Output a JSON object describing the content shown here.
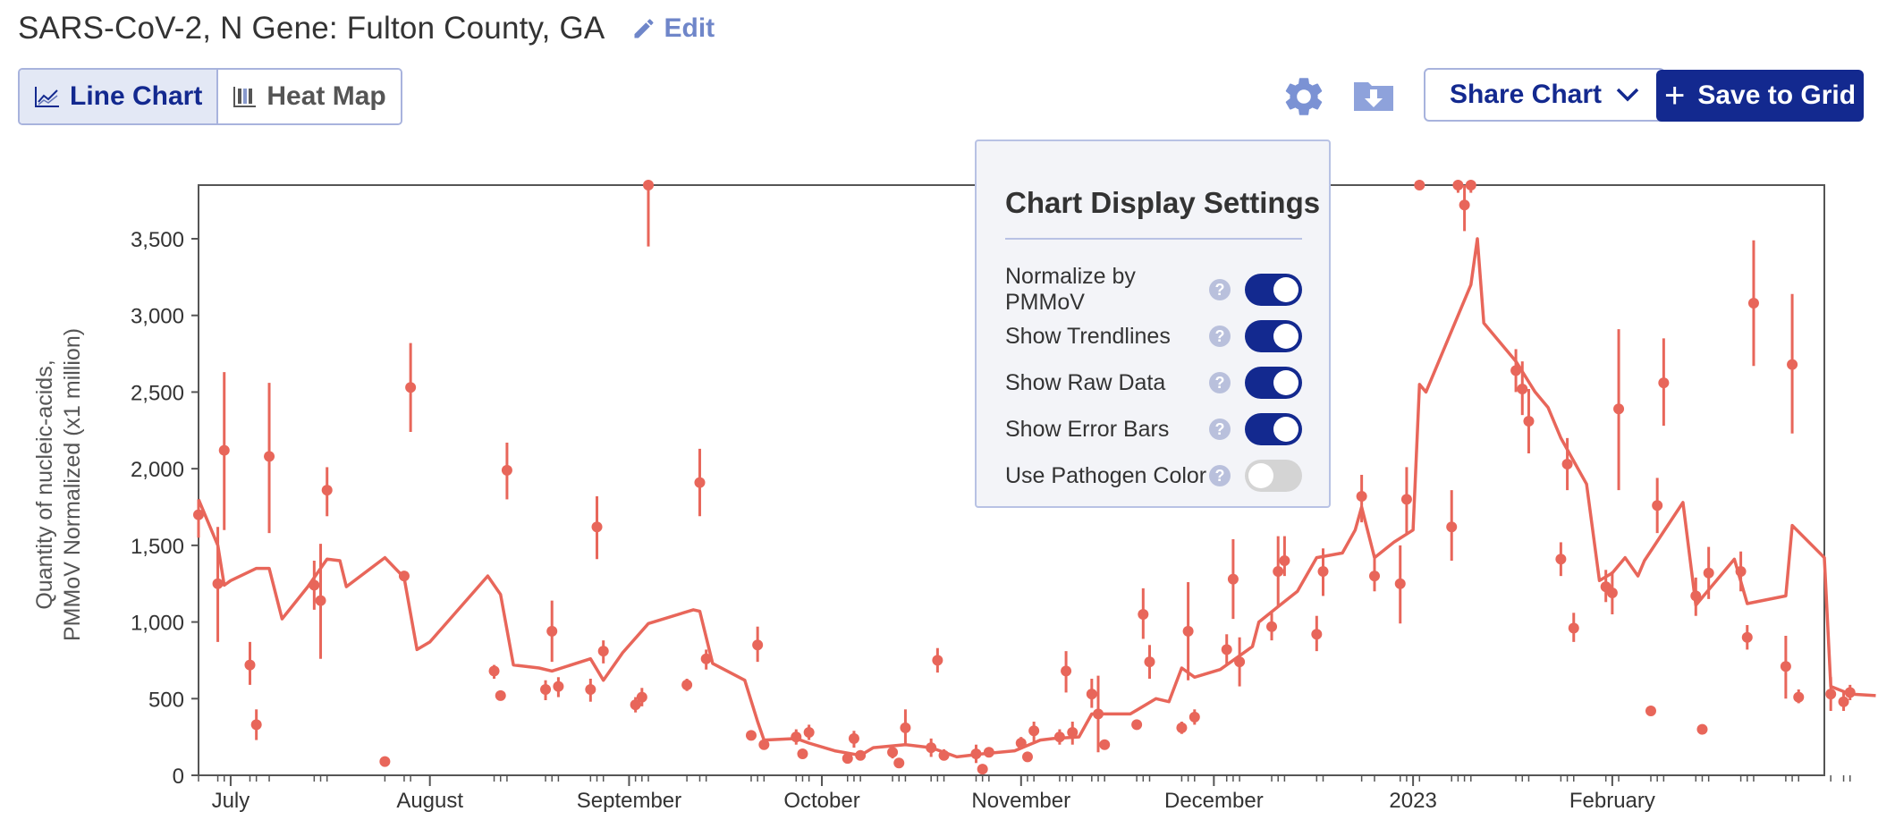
{
  "header": {
    "title": "SARS-CoV-2, N Gene: Fulton County, GA",
    "edit_label": "Edit"
  },
  "view_toggle": {
    "line_label": "Line Chart",
    "heat_label": "Heat Map"
  },
  "toolbar": {
    "share_label": "Share Chart",
    "save_label": "Save to Grid"
  },
  "settings_panel": {
    "title": "Chart Display Settings",
    "help_glyph": "?",
    "items": [
      {
        "label": "Normalize by PMMoV",
        "on": true
      },
      {
        "label": "Show Trendlines",
        "on": true
      },
      {
        "label": "Show Raw Data",
        "on": true
      },
      {
        "label": "Show Error Bars",
        "on": true
      },
      {
        "label": "Use Pathogen Color",
        "on": false
      }
    ]
  },
  "colors": {
    "series": "#e8665a",
    "accent": "#13298f",
    "axis_text": "#333333"
  },
  "chart_data": {
    "type": "scatter",
    "ylabel_lines": [
      "Quantity of nucleic-acids,",
      "PMMoV Normalized (x1 million)"
    ],
    "x_ticks": [
      {
        "date": "2022-07-01",
        "label": "July"
      },
      {
        "date": "2022-08-01",
        "label": "August"
      },
      {
        "date": "2022-09-01",
        "label": "September"
      },
      {
        "date": "2022-10-01",
        "label": "October"
      },
      {
        "date": "2022-11-01",
        "label": "November"
      },
      {
        "date": "2022-12-01",
        "label": "December"
      },
      {
        "date": "2023-01-01",
        "label": "2023"
      },
      {
        "date": "2023-02-01",
        "label": "February"
      }
    ],
    "xlim": [
      "2022-06-26",
      "2023-03-06"
    ],
    "y_ticks": [
      {
        "value": 0,
        "label": "0"
      },
      {
        "value": 500,
        "label": "500"
      },
      {
        "value": 1000,
        "label": "1,000"
      },
      {
        "value": 1500,
        "label": "1,500"
      },
      {
        "value": 2000,
        "label": "2,000"
      },
      {
        "value": 2500,
        "label": "2,500"
      },
      {
        "value": 3000,
        "label": "3,000"
      },
      {
        "value": 3500,
        "label": "3,500"
      }
    ],
    "ylim": [
      0,
      3850
    ],
    "grid": false,
    "trendline": [
      {
        "x": "2022-06-26",
        "y": 1800
      },
      {
        "x": "2022-06-29",
        "y": 1500
      },
      {
        "x": "2022-06-30",
        "y": 1240
      },
      {
        "x": "2022-07-01",
        "y": 1270
      },
      {
        "x": "2022-07-03",
        "y": 1310
      },
      {
        "x": "2022-07-05",
        "y": 1350
      },
      {
        "x": "2022-07-07",
        "y": 1350
      },
      {
        "x": "2022-07-09",
        "y": 1020
      },
      {
        "x": "2022-07-13",
        "y": 1230
      },
      {
        "x": "2022-07-16",
        "y": 1410
      },
      {
        "x": "2022-07-18",
        "y": 1400
      },
      {
        "x": "2022-07-19",
        "y": 1230
      },
      {
        "x": "2022-07-25",
        "y": 1420
      },
      {
        "x": "2022-07-28",
        "y": 1290
      },
      {
        "x": "2022-07-30",
        "y": 820
      },
      {
        "x": "2022-08-01",
        "y": 870
      },
      {
        "x": "2022-08-10",
        "y": 1300
      },
      {
        "x": "2022-08-12",
        "y": 1180
      },
      {
        "x": "2022-08-14",
        "y": 720
      },
      {
        "x": "2022-08-18",
        "y": 700
      },
      {
        "x": "2022-08-20",
        "y": 680
      },
      {
        "x": "2022-08-26",
        "y": 760
      },
      {
        "x": "2022-08-28",
        "y": 620
      },
      {
        "x": "2022-08-31",
        "y": 800
      },
      {
        "x": "2022-09-04",
        "y": 990
      },
      {
        "x": "2022-09-11",
        "y": 1080
      },
      {
        "x": "2022-09-12",
        "y": 1070
      },
      {
        "x": "2022-09-14",
        "y": 730
      },
      {
        "x": "2022-09-19",
        "y": 620
      },
      {
        "x": "2022-09-21",
        "y": 350
      },
      {
        "x": "2022-09-22",
        "y": 230
      },
      {
        "x": "2022-09-27",
        "y": 240
      },
      {
        "x": "2022-09-29",
        "y": 210
      },
      {
        "x": "2022-10-03",
        "y": 160
      },
      {
        "x": "2022-10-07",
        "y": 130
      },
      {
        "x": "2022-10-09",
        "y": 180
      },
      {
        "x": "2022-10-14",
        "y": 200
      },
      {
        "x": "2022-10-18",
        "y": 180
      },
      {
        "x": "2022-10-22",
        "y": 120
      },
      {
        "x": "2022-10-26",
        "y": 140
      },
      {
        "x": "2022-10-31",
        "y": 160
      },
      {
        "x": "2022-11-04",
        "y": 230
      },
      {
        "x": "2022-11-06",
        "y": 240
      },
      {
        "x": "2022-11-10",
        "y": 250
      },
      {
        "x": "2022-11-12",
        "y": 400
      },
      {
        "x": "2022-11-14",
        "y": 400
      },
      {
        "x": "2022-11-18",
        "y": 400
      },
      {
        "x": "2022-11-22",
        "y": 500
      },
      {
        "x": "2022-11-24",
        "y": 480
      },
      {
        "x": "2022-11-26",
        "y": 700
      },
      {
        "x": "2022-11-28",
        "y": 640
      },
      {
        "x": "2022-12-02",
        "y": 690
      },
      {
        "x": "2022-12-05",
        "y": 780
      },
      {
        "x": "2022-12-07",
        "y": 840
      },
      {
        "x": "2022-12-08",
        "y": 1000
      },
      {
        "x": "2022-12-11",
        "y": 1100
      },
      {
        "x": "2022-12-14",
        "y": 1200
      },
      {
        "x": "2022-12-17",
        "y": 1420
      },
      {
        "x": "2022-12-21",
        "y": 1450
      },
      {
        "x": "2022-12-23",
        "y": 1600
      },
      {
        "x": "2022-12-24",
        "y": 1750
      },
      {
        "x": "2022-12-26",
        "y": 1420
      },
      {
        "x": "2022-12-29",
        "y": 1520
      },
      {
        "x": "2023-01-01",
        "y": 1600
      },
      {
        "x": "2023-01-02",
        "y": 2550
      },
      {
        "x": "2023-01-03",
        "y": 2500
      },
      {
        "x": "2023-01-10",
        "y": 3200
      },
      {
        "x": "2023-01-11",
        "y": 3500
      },
      {
        "x": "2023-01-12",
        "y": 2950
      },
      {
        "x": "2023-01-17",
        "y": 2700
      },
      {
        "x": "2023-01-20",
        "y": 2500
      },
      {
        "x": "2023-01-22",
        "y": 2400
      },
      {
        "x": "2023-01-24",
        "y": 2200
      },
      {
        "x": "2023-01-28",
        "y": 1900
      },
      {
        "x": "2023-01-30",
        "y": 1270
      },
      {
        "x": "2023-02-01",
        "y": 1320
      },
      {
        "x": "2023-02-03",
        "y": 1420
      },
      {
        "x": "2023-02-05",
        "y": 1300
      },
      {
        "x": "2023-02-06",
        "y": 1400
      },
      {
        "x": "2023-02-12",
        "y": 1780
      },
      {
        "x": "2023-02-14",
        "y": 1110
      },
      {
        "x": "2023-02-20",
        "y": 1410
      },
      {
        "x": "2023-02-22",
        "y": 1120
      },
      {
        "x": "2023-02-28",
        "y": 1170
      },
      {
        "x": "2023-03-01",
        "y": 1630
      },
      {
        "x": "2023-03-06",
        "y": 1420
      },
      {
        "x": "2023-03-07",
        "y": 580
      },
      {
        "x": "2023-03-10",
        "y": 530
      },
      {
        "x": "2023-03-14",
        "y": 520
      }
    ],
    "points": [
      {
        "x": "2022-06-26",
        "y": 1700,
        "lo": 1550,
        "hi": 1800
      },
      {
        "x": "2022-06-29",
        "y": 1250,
        "lo": 870,
        "hi": 1620
      },
      {
        "x": "2022-06-30",
        "y": 2120,
        "lo": 1600,
        "hi": 2630
      },
      {
        "x": "2022-07-04",
        "y": 720,
        "lo": 590,
        "hi": 870
      },
      {
        "x": "2022-07-05",
        "y": 330,
        "lo": 230,
        "hi": 430
      },
      {
        "x": "2022-07-07",
        "y": 2080,
        "lo": 1580,
        "hi": 2560
      },
      {
        "x": "2022-07-14",
        "y": 1240,
        "lo": 1080,
        "hi": 1400
      },
      {
        "x": "2022-07-15",
        "y": 1140,
        "lo": 760,
        "hi": 1510
      },
      {
        "x": "2022-07-16",
        "y": 1860,
        "lo": 1690,
        "hi": 2010
      },
      {
        "x": "2022-07-25",
        "y": 90,
        "lo": 90,
        "hi": 90
      },
      {
        "x": "2022-07-28",
        "y": 1300,
        "lo": 1300,
        "hi": 1300
      },
      {
        "x": "2022-07-29",
        "y": 2530,
        "lo": 2240,
        "hi": 2820
      },
      {
        "x": "2022-08-11",
        "y": 680,
        "lo": 630,
        "hi": 720
      },
      {
        "x": "2022-08-12",
        "y": 520,
        "lo": 520,
        "hi": 520
      },
      {
        "x": "2022-08-13",
        "y": 1990,
        "lo": 1800,
        "hi": 2170
      },
      {
        "x": "2022-08-19",
        "y": 560,
        "lo": 490,
        "hi": 620
      },
      {
        "x": "2022-08-20",
        "y": 940,
        "lo": 740,
        "hi": 1140
      },
      {
        "x": "2022-08-21",
        "y": 580,
        "lo": 510,
        "hi": 640
      },
      {
        "x": "2022-08-26",
        "y": 560,
        "lo": 480,
        "hi": 630
      },
      {
        "x": "2022-08-27",
        "y": 1620,
        "lo": 1410,
        "hi": 1820
      },
      {
        "x": "2022-08-28",
        "y": 810,
        "lo": 730,
        "hi": 880
      },
      {
        "x": "2022-09-02",
        "y": 460,
        "lo": 410,
        "hi": 510
      },
      {
        "x": "2022-09-03",
        "y": 510,
        "lo": 450,
        "hi": 570
      },
      {
        "x": "2022-09-04",
        "y": 3850,
        "lo": 3450,
        "hi": 3850
      },
      {
        "x": "2022-09-10",
        "y": 590,
        "lo": 550,
        "hi": 630
      },
      {
        "x": "2022-09-12",
        "y": 1910,
        "lo": 1690,
        "hi": 2130
      },
      {
        "x": "2022-09-13",
        "y": 760,
        "lo": 690,
        "hi": 820
      },
      {
        "x": "2022-09-20",
        "y": 260,
        "lo": 260,
        "hi": 260
      },
      {
        "x": "2022-09-21",
        "y": 850,
        "lo": 740,
        "hi": 970
      },
      {
        "x": "2022-09-22",
        "y": 200,
        "lo": 170,
        "hi": 230
      },
      {
        "x": "2022-09-27",
        "y": 250,
        "lo": 200,
        "hi": 300
      },
      {
        "x": "2022-09-28",
        "y": 140,
        "lo": 140,
        "hi": 140
      },
      {
        "x": "2022-09-29",
        "y": 280,
        "lo": 230,
        "hi": 330
      },
      {
        "x": "2022-10-05",
        "y": 110,
        "lo": 110,
        "hi": 110
      },
      {
        "x": "2022-10-06",
        "y": 240,
        "lo": 180,
        "hi": 290
      },
      {
        "x": "2022-10-07",
        "y": 130,
        "lo": 130,
        "hi": 130
      },
      {
        "x": "2022-10-12",
        "y": 150,
        "lo": 110,
        "hi": 200
      },
      {
        "x": "2022-10-13",
        "y": 80,
        "lo": 80,
        "hi": 80
      },
      {
        "x": "2022-10-14",
        "y": 310,
        "lo": 200,
        "hi": 430
      },
      {
        "x": "2022-10-18",
        "y": 180,
        "lo": 120,
        "hi": 240
      },
      {
        "x": "2022-10-19",
        "y": 750,
        "lo": 670,
        "hi": 830
      },
      {
        "x": "2022-10-20",
        "y": 130,
        "lo": 100,
        "hi": 170
      },
      {
        "x": "2022-10-25",
        "y": 140,
        "lo": 80,
        "hi": 200
      },
      {
        "x": "2022-10-26",
        "y": 40,
        "lo": 40,
        "hi": 40
      },
      {
        "x": "2022-10-27",
        "y": 150,
        "lo": 150,
        "hi": 150
      },
      {
        "x": "2022-11-01",
        "y": 210,
        "lo": 170,
        "hi": 250
      },
      {
        "x": "2022-11-02",
        "y": 120,
        "lo": 120,
        "hi": 120
      },
      {
        "x": "2022-11-03",
        "y": 290,
        "lo": 220,
        "hi": 350
      },
      {
        "x": "2022-11-07",
        "y": 250,
        "lo": 200,
        "hi": 300
      },
      {
        "x": "2022-11-08",
        "y": 680,
        "lo": 540,
        "hi": 810
      },
      {
        "x": "2022-11-09",
        "y": 280,
        "lo": 200,
        "hi": 350
      },
      {
        "x": "2022-11-12",
        "y": 530,
        "lo": 440,
        "hi": 630
      },
      {
        "x": "2022-11-13",
        "y": 400,
        "lo": 150,
        "hi": 650
      },
      {
        "x": "2022-11-14",
        "y": 200,
        "lo": 200,
        "hi": 200
      },
      {
        "x": "2022-11-19",
        "y": 330,
        "lo": 300,
        "hi": 360
      },
      {
        "x": "2022-11-20",
        "y": 1050,
        "lo": 890,
        "hi": 1220
      },
      {
        "x": "2022-11-21",
        "y": 740,
        "lo": 630,
        "hi": 850
      },
      {
        "x": "2022-11-26",
        "y": 310,
        "lo": 270,
        "hi": 350
      },
      {
        "x": "2022-11-27",
        "y": 940,
        "lo": 620,
        "hi": 1260
      },
      {
        "x": "2022-11-28",
        "y": 380,
        "lo": 330,
        "hi": 430
      },
      {
        "x": "2022-12-03",
        "y": 820,
        "lo": 720,
        "hi": 920
      },
      {
        "x": "2022-12-04",
        "y": 1280,
        "lo": 1020,
        "hi": 1540
      },
      {
        "x": "2022-12-05",
        "y": 740,
        "lo": 580,
        "hi": 900
      },
      {
        "x": "2022-12-10",
        "y": 970,
        "lo": 880,
        "hi": 1060
      },
      {
        "x": "2022-12-11",
        "y": 1330,
        "lo": 1100,
        "hi": 1560
      },
      {
        "x": "2022-12-12",
        "y": 1400,
        "lo": 1300,
        "hi": 1560
      },
      {
        "x": "2022-12-17",
        "y": 920,
        "lo": 810,
        "hi": 1040
      },
      {
        "x": "2022-12-18",
        "y": 1330,
        "lo": 1170,
        "hi": 1480
      },
      {
        "x": "2022-12-24",
        "y": 1820,
        "lo": 1650,
        "hi": 1960
      },
      {
        "x": "2022-12-26",
        "y": 1300,
        "lo": 1200,
        "hi": 1420
      },
      {
        "x": "2022-12-30",
        "y": 1250,
        "lo": 990,
        "hi": 1500
      },
      {
        "x": "2022-12-31",
        "y": 1800,
        "lo": 1580,
        "hi": 2010
      },
      {
        "x": "2023-01-02",
        "y": 3850,
        "lo": 3850,
        "hi": 3850
      },
      {
        "x": "2023-01-07",
        "y": 1620,
        "lo": 1400,
        "hi": 1860
      },
      {
        "x": "2023-01-08",
        "y": 3850,
        "lo": 3800,
        "hi": 3850
      },
      {
        "x": "2023-01-09",
        "y": 3720,
        "lo": 3550,
        "hi": 3850
      },
      {
        "x": "2023-01-10",
        "y": 3850,
        "lo": 3800,
        "hi": 3850
      },
      {
        "x": "2023-01-17",
        "y": 2640,
        "lo": 2500,
        "hi": 2780
      },
      {
        "x": "2023-01-18",
        "y": 2520,
        "lo": 2350,
        "hi": 2700
      },
      {
        "x": "2023-01-19",
        "y": 2310,
        "lo": 2100,
        "hi": 2520
      },
      {
        "x": "2023-01-24",
        "y": 1410,
        "lo": 1300,
        "hi": 1520
      },
      {
        "x": "2023-01-25",
        "y": 2030,
        "lo": 1860,
        "hi": 2200
      },
      {
        "x": "2023-01-26",
        "y": 960,
        "lo": 870,
        "hi": 1060
      },
      {
        "x": "2023-01-31",
        "y": 1230,
        "lo": 1130,
        "hi": 1340
      },
      {
        "x": "2023-02-01",
        "y": 1190,
        "lo": 1050,
        "hi": 1330
      },
      {
        "x": "2023-02-02",
        "y": 2390,
        "lo": 1860,
        "hi": 2910
      },
      {
        "x": "2023-02-07",
        "y": 420,
        "lo": 420,
        "hi": 420
      },
      {
        "x": "2023-02-08",
        "y": 1760,
        "lo": 1580,
        "hi": 1940
      },
      {
        "x": "2023-02-09",
        "y": 2560,
        "lo": 2280,
        "hi": 2850
      },
      {
        "x": "2023-02-14",
        "y": 1170,
        "lo": 1040,
        "hi": 1290
      },
      {
        "x": "2023-02-15",
        "y": 300,
        "lo": 270,
        "hi": 330
      },
      {
        "x": "2023-02-16",
        "y": 1320,
        "lo": 1150,
        "hi": 1490
      },
      {
        "x": "2023-02-21",
        "y": 1330,
        "lo": 1200,
        "hi": 1460
      },
      {
        "x": "2023-02-22",
        "y": 900,
        "lo": 820,
        "hi": 980
      },
      {
        "x": "2023-02-23",
        "y": 3080,
        "lo": 2670,
        "hi": 3490
      },
      {
        "x": "2023-02-28",
        "y": 710,
        "lo": 500,
        "hi": 910
      },
      {
        "x": "2023-03-01",
        "y": 2680,
        "lo": 2230,
        "hi": 3140
      },
      {
        "x": "2023-03-02",
        "y": 510,
        "lo": 470,
        "hi": 560
      },
      {
        "x": "2023-03-07",
        "y": 530,
        "lo": 420,
        "hi": 640
      },
      {
        "x": "2023-03-09",
        "y": 480,
        "lo": 420,
        "hi": 540
      },
      {
        "x": "2023-03-10",
        "y": 540,
        "lo": 490,
        "hi": 590
      }
    ]
  }
}
